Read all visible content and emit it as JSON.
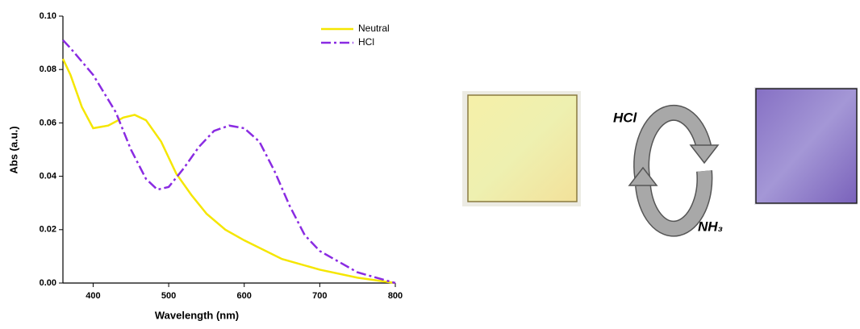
{
  "chart_data": {
    "type": "line",
    "xlabel": "Wavelength (nm)",
    "ylabel": "Abs (a.u.)",
    "xlim": [
      360,
      800
    ],
    "ylim": [
      0,
      0.1
    ],
    "xticks": [
      400,
      500,
      600,
      700,
      800
    ],
    "yticks": [
      {
        "value": 0,
        "label": "0.00"
      },
      {
        "value": 0.02,
        "label": "0.02"
      },
      {
        "value": 0.04,
        "label": "0.04"
      },
      {
        "value": 0.06,
        "label": "0.06"
      },
      {
        "value": 0.08,
        "label": "0.08"
      },
      {
        "value": 0.1,
        "label": "0.10"
      }
    ],
    "legend": "upper right",
    "series": [
      {
        "name": "Neutral",
        "color": "#f5e600",
        "linestyle": "solid",
        "x": [
          360,
          370,
          385,
          400,
          420,
          440,
          455,
          470,
          490,
          510,
          530,
          550,
          575,
          600,
          650,
          700,
          750,
          800
        ],
        "values": [
          0.084,
          0.078,
          0.066,
          0.058,
          0.059,
          0.062,
          0.063,
          0.061,
          0.053,
          0.041,
          0.033,
          0.026,
          0.02,
          0.016,
          0.009,
          0.005,
          0.002,
          0.0
        ]
      },
      {
        "name": "HCl",
        "color": "#8a2be2",
        "linestyle": "dashdot",
        "x": [
          360,
          370,
          400,
          430,
          450,
          470,
          485,
          500,
          520,
          540,
          560,
          580,
          600,
          620,
          640,
          660,
          680,
          700,
          750,
          800
        ],
        "values": [
          0.091,
          0.088,
          0.078,
          0.064,
          0.05,
          0.039,
          0.035,
          0.036,
          0.043,
          0.051,
          0.057,
          0.059,
          0.058,
          0.053,
          0.042,
          0.029,
          0.018,
          0.012,
          0.004,
          0.0
        ]
      }
    ]
  },
  "reaction": {
    "forward": "HCl",
    "reverse": "NH₃"
  }
}
